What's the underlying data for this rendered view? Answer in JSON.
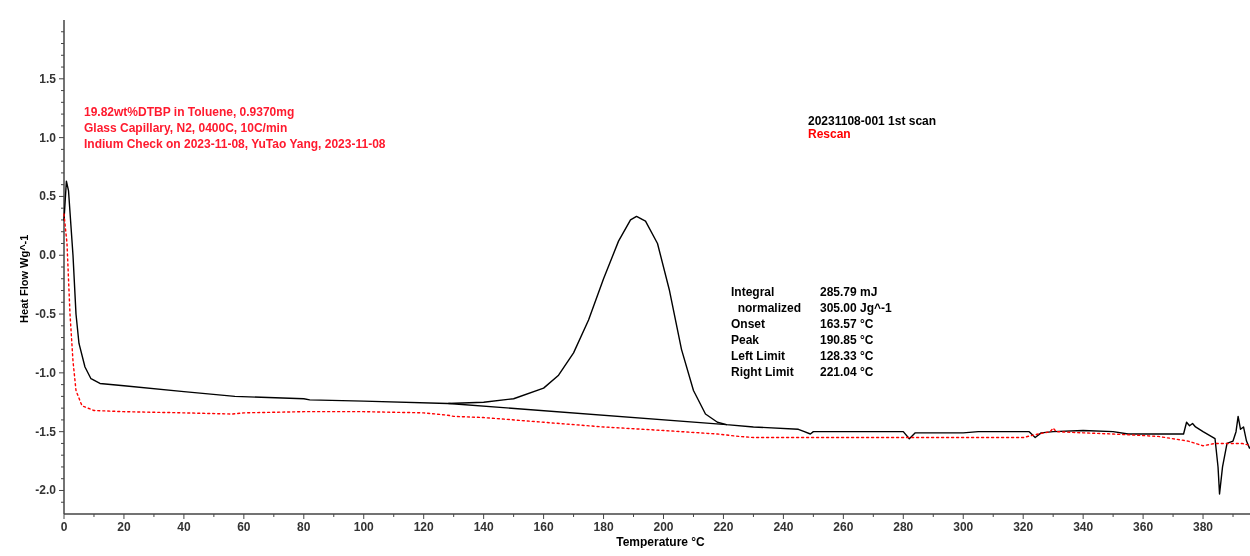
{
  "chart_data": {
    "type": "line",
    "xlabel": "Temperature °C",
    "ylabel": "Heat Flow Wg^-1",
    "xlim": [
      0,
      398
    ],
    "ylim": [
      -2.2,
      2.0
    ],
    "xticks": [
      0,
      {
        "value": 10,
        "label": null
      },
      20,
      {
        "value": 30,
        "label": null
      },
      40,
      {
        "value": 50,
        "label": null
      },
      60,
      {
        "value": 70,
        "label": null
      },
      80,
      {
        "value": 90,
        "label": null
      },
      100,
      {
        "value": 110,
        "label": null
      },
      120,
      {
        "value": 130,
        "label": null
      },
      140,
      {
        "value": 150,
        "label": null
      },
      160,
      {
        "value": 170,
        "label": null
      },
      180,
      {
        "value": 190,
        "label": null
      },
      200,
      {
        "value": 210,
        "label": null
      },
      220,
      {
        "value": 230,
        "label": null
      },
      240,
      {
        "value": 250,
        "label": null
      },
      260,
      {
        "value": 270,
        "label": null
      },
      280,
      {
        "value": 290,
        "label": null
      },
      300,
      {
        "value": 310,
        "label": null
      },
      320,
      {
        "value": 330,
        "label": null
      },
      340,
      {
        "value": 350,
        "label": null
      },
      360,
      {
        "value": 370,
        "label": null
      },
      380,
      {
        "value": 390,
        "label": null
      }
    ],
    "yticks": [
      {
        "value": -2.1,
        "label": null
      },
      {
        "value": -2.0,
        "label": "-2.0"
      },
      {
        "value": -1.9,
        "label": null
      },
      {
        "value": -1.8,
        "label": null
      },
      {
        "value": -1.7,
        "label": null
      },
      {
        "value": -1.6,
        "label": null
      },
      -1.5,
      {
        "value": -1.4,
        "label": null
      },
      {
        "value": -1.3,
        "label": null
      },
      {
        "value": -1.2,
        "label": null
      },
      {
        "value": -1.1,
        "label": null
      },
      {
        "value": -1.0,
        "label": "-1.0"
      },
      {
        "value": -0.9,
        "label": null
      },
      {
        "value": -0.8,
        "label": null
      },
      {
        "value": -0.7,
        "label": null
      },
      {
        "value": -0.6,
        "label": null
      },
      -0.5,
      {
        "value": -0.4,
        "label": null
      },
      {
        "value": -0.3,
        "label": null
      },
      {
        "value": -0.2,
        "label": null
      },
      {
        "value": -0.1,
        "label": null
      },
      {
        "value": 0,
        "label": "0.0"
      },
      {
        "value": 0.1,
        "label": null
      },
      {
        "value": 0.2,
        "label": null
      },
      {
        "value": 0.3,
        "label": null
      },
      {
        "value": 0.4,
        "label": null
      },
      0.5,
      {
        "value": 0.6,
        "label": null
      },
      {
        "value": 0.7,
        "label": null
      },
      {
        "value": 0.8,
        "label": null
      },
      {
        "value": 0.9,
        "label": null
      },
      {
        "value": 1.0,
        "label": "1.0"
      },
      {
        "value": 1.1,
        "label": null
      },
      {
        "value": 1.2,
        "label": null
      },
      {
        "value": 1.3,
        "label": null
      },
      {
        "value": 1.4,
        "label": null
      },
      1.5,
      {
        "value": 1.6,
        "label": null
      },
      {
        "value": 1.7,
        "label": null
      },
      {
        "value": 1.8,
        "label": null
      },
      {
        "value": 1.9,
        "label": null
      }
    ],
    "grid": false,
    "legend": "top right",
    "marker": "none",
    "series": [
      {
        "name": "20231108-001 1st scan",
        "color": "#000000",
        "line_style": "solid",
        "x": [
          0,
          0.8,
          1.5,
          3,
          4,
          5,
          7,
          9,
          12,
          20,
          40,
          57,
          80,
          82,
          100,
          128,
          140,
          150,
          160,
          165,
          170,
          175,
          180,
          185,
          189,
          191,
          194,
          198,
          202,
          206,
          210,
          214,
          218,
          221,
          230,
          245,
          247,
          249,
          250,
          252,
          270,
          280,
          282,
          284,
          300,
          305,
          322,
          324,
          326,
          330,
          340,
          350,
          355,
          370,
          373.5,
          374.5,
          375.5,
          376.5,
          377.5,
          380,
          384,
          385,
          385.5,
          386.5,
          388,
          390,
          391,
          391.7,
          392.5,
          393.5,
          394.5,
          395.5,
          398
        ],
        "values": [
          0.3,
          0.63,
          0.55,
          0,
          -0.5,
          -0.75,
          -0.95,
          -1.05,
          -1.09,
          -1.11,
          -1.16,
          -1.2,
          -1.22,
          -1.23,
          -1.24,
          -1.26,
          -1.25,
          -1.22,
          -1.13,
          -1.02,
          -0.83,
          -0.55,
          -0.2,
          0.12,
          0.3,
          0.33,
          0.29,
          0.1,
          -0.3,
          -0.8,
          -1.15,
          -1.35,
          -1.42,
          -1.44,
          -1.46,
          -1.48,
          -1.5,
          -1.52,
          -1.5,
          -1.5,
          -1.5,
          -1.5,
          -1.56,
          -1.51,
          -1.51,
          -1.5,
          -1.5,
          -1.55,
          -1.51,
          -1.5,
          -1.49,
          -1.5,
          -1.52,
          -1.52,
          -1.52,
          -1.42,
          -1.45,
          -1.43,
          -1.46,
          -1.5,
          -1.56,
          -1.8,
          -2.03,
          -1.8,
          -1.6,
          -1.58,
          -1.5,
          -1.37,
          -1.48,
          -1.46,
          -1.58,
          -1.64,
          -1.64
        ]
      },
      {
        "name": "Rescan",
        "color": "#ff0000",
        "line_style": "dotted",
        "x": [
          0,
          1,
          2,
          3,
          4,
          6,
          10,
          20,
          40,
          56,
          60,
          80,
          100,
          120,
          128,
          130,
          140,
          160,
          180,
          200,
          218,
          225,
          230,
          240,
          260,
          280,
          300,
          320,
          325,
          329,
          330,
          331,
          340,
          350,
          365,
          375,
          380,
          384,
          390,
          393,
          398
        ],
        "values": [
          0.35,
          0.1,
          -0.5,
          -0.9,
          -1.15,
          -1.28,
          -1.32,
          -1.33,
          -1.34,
          -1.35,
          -1.34,
          -1.33,
          -1.33,
          -1.34,
          -1.36,
          -1.37,
          -1.38,
          -1.42,
          -1.46,
          -1.49,
          -1.52,
          -1.54,
          -1.55,
          -1.55,
          -1.55,
          -1.55,
          -1.55,
          -1.55,
          -1.52,
          -1.5,
          -1.47,
          -1.5,
          -1.51,
          -1.52,
          -1.54,
          -1.58,
          -1.62,
          -1.6,
          -1.6,
          -1.6,
          -1.63
        ]
      },
      {
        "color": "#000000",
        "line_style": "solid",
        "x": [
          128.33,
          221.04
        ],
        "values": [
          -1.26,
          -1.44
        ]
      }
    ],
    "annotations": [
      "19.82wt%DTBP in Toluene, 0.9370mg",
      "Glass Capillary, N2, 0400C, 10C/min",
      "Indium Check on 2023-11-08, YuTao Yang, 2023-11-08",
      "Integral\t285.79 mJ",
      "  normalized\t305.00 Jg^-1",
      "Onset\t163.57 °C",
      "Peak\t190.85 °C",
      "Left Limit\t128.33 °C",
      "Right Limit\t221.04 °C"
    ]
  }
}
